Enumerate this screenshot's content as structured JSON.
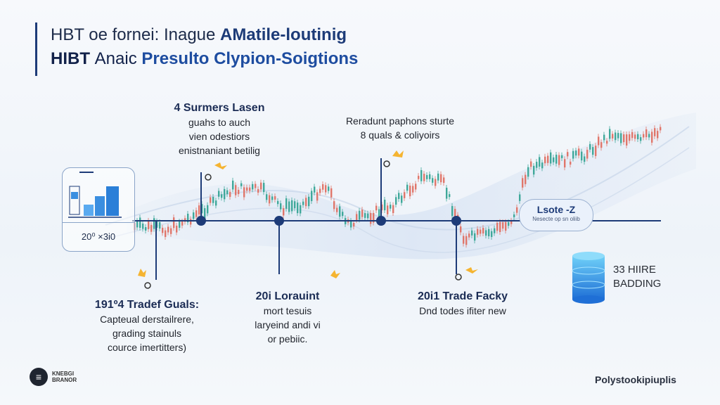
{
  "title": {
    "line1_prefix": "HBT oe fornei: Inague ",
    "line1_bold": "AMatile-loutinig",
    "line2_prefix": "HIBT ",
    "line2_mid": "Anaic ",
    "line2_accent": "Presulto Clypion-Soigtions"
  },
  "top_labels": [
    {
      "head": "4 Surmers Lasen",
      "lines": [
        "guahs to auch",
        "vien odestiors",
        "enistnaniant betilig"
      ]
    },
    {
      "head": "Reradunt paphons sturte",
      "lines": [
        "8 quals & coliyoirs"
      ]
    }
  ],
  "bottom_labels": [
    {
      "head": "191º4 Tradef Guals:",
      "lines": [
        "Capteual derstailrere,",
        "grading stainuls",
        "cource imertitters)"
      ]
    },
    {
      "head": "20i Lorauint",
      "lines": [
        "mort tesuis",
        "laryeind andi vi",
        "or pebiic."
      ]
    },
    {
      "head": "20i1 Trade Facky",
      "lines": [
        "Dnd todes ifiter new"
      ]
    }
  ],
  "panel": {
    "label": "20⁰ ×3i0"
  },
  "pill": {
    "title": "Lsote -Z",
    "subtitle": "Nesecte op sn oliib"
  },
  "database": {
    "line1": "33 HIIRE",
    "line2": "BADDING"
  },
  "footer": {
    "logo_line1": "KNEBGI",
    "logo_line2": "BRANOR",
    "right": "Polystookipiuplis"
  },
  "colors": {
    "accent": "#1d3b78",
    "up_candle": "#3fa89a",
    "down_candle": "#e0766a",
    "highlight": "#f5b431"
  },
  "icons": [
    "chart-panel-icon",
    "database-icon",
    "logo-icon",
    "sparkle-icon",
    "bullet-dot-icon"
  ]
}
